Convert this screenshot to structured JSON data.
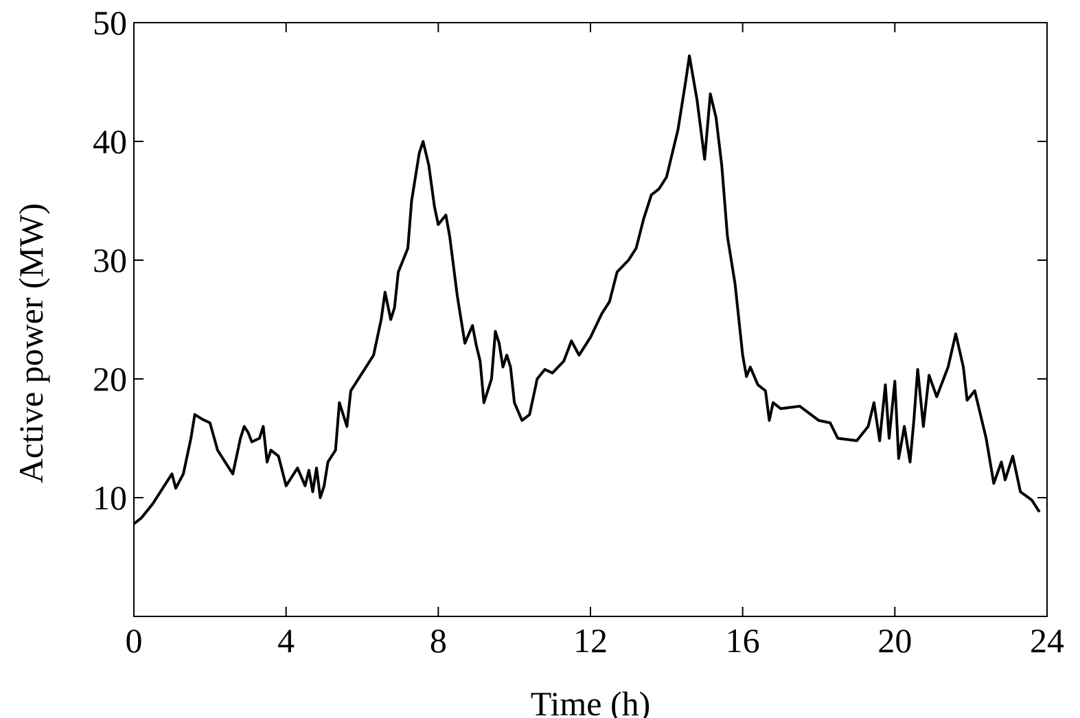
{
  "chart_data": {
    "type": "line",
    "xlabel": "Time (h)",
    "ylabel": "Active power (MW)",
    "x": [
      0,
      0.2,
      0.5,
      0.8,
      1.0,
      1.1,
      1.3,
      1.5,
      1.6,
      1.8,
      2.0,
      2.2,
      2.5,
      2.6,
      2.8,
      2.9,
      3.0,
      3.1,
      3.3,
      3.4,
      3.5,
      3.6,
      3.8,
      4.0,
      4.2,
      4.3,
      4.5,
      4.6,
      4.7,
      4.8,
      4.9,
      5.0,
      5.1,
      5.3,
      5.4,
      5.6,
      5.7,
      6.0,
      6.3,
      6.5,
      6.6,
      6.75,
      6.85,
      6.95,
      7.2,
      7.3,
      7.5,
      7.6,
      7.75,
      7.9,
      8.0,
      8.2,
      8.3,
      8.5,
      8.7,
      8.9,
      9.0,
      9.1,
      9.2,
      9.4,
      9.5,
      9.6,
      9.7,
      9.8,
      9.9,
      10.0,
      10.2,
      10.4,
      10.6,
      10.8,
      11.0,
      11.3,
      11.5,
      11.7,
      12.0,
      12.3,
      12.5,
      12.7,
      13.0,
      13.2,
      13.4,
      13.6,
      13.8,
      14.0,
      14.3,
      14.5,
      14.6,
      14.8,
      15.0,
      15.15,
      15.3,
      15.45,
      15.6,
      15.8,
      16.0,
      16.1,
      16.2,
      16.4,
      16.6,
      16.7,
      16.8,
      17.0,
      17.5,
      18.0,
      18.3,
      18.5,
      19.0,
      19.3,
      19.45,
      19.6,
      19.75,
      19.85,
      20.0,
      20.1,
      20.25,
      20.4,
      20.5,
      20.6,
      20.75,
      20.9,
      21.1,
      21.4,
      21.6,
      21.8,
      21.9,
      22.1,
      22.4,
      22.6,
      22.8,
      22.9,
      23.1,
      23.3,
      23.6,
      23.8
    ],
    "series": [
      {
        "name": "Active power",
        "color": "#000000",
        "values": [
          7.8,
          8.3,
          9.5,
          11,
          12,
          10.8,
          12,
          15,
          17,
          16.6,
          16.3,
          14,
          12.5,
          12,
          15,
          16,
          15.5,
          14.7,
          15,
          16,
          13,
          14,
          13.5,
          11,
          12,
          12.5,
          11,
          12.3,
          10.5,
          12.5,
          10,
          11,
          13,
          14,
          18,
          16,
          19,
          20.5,
          22,
          25,
          27.3,
          25,
          26,
          29,
          31,
          35,
          39,
          40,
          38,
          34.5,
          33,
          33.8,
          32,
          27,
          23,
          24.5,
          22.8,
          21.5,
          18,
          20,
          24,
          23,
          21,
          22,
          21,
          18,
          16.5,
          17,
          20,
          20.8,
          20.5,
          21.5,
          23.2,
          22,
          23.5,
          25.5,
          26.5,
          29,
          30,
          31,
          33.5,
          35.5,
          36,
          37,
          41,
          45,
          47.2,
          43.5,
          38.5,
          44,
          42,
          38,
          32,
          28,
          22,
          20.2,
          21,
          19.5,
          19,
          16.5,
          18,
          17.5,
          17.7,
          16.5,
          16.3,
          15,
          14.8,
          16,
          18,
          14.8,
          19.5,
          15,
          19.8,
          13.3,
          16,
          13,
          16.5,
          20.8,
          16,
          20.3,
          18.5,
          21,
          23.8,
          21,
          18.2,
          19,
          15,
          11.2,
          13,
          11.5,
          13.5,
          10.5,
          9.8,
          8.8
        ]
      }
    ],
    "xlim": [
      0,
      24
    ],
    "xticks": [
      0,
      4,
      8,
      12,
      16,
      20,
      24
    ],
    "ylim": [
      0,
      50
    ],
    "yticks": [
      10,
      20,
      30,
      40,
      50
    ],
    "grid": false
  }
}
